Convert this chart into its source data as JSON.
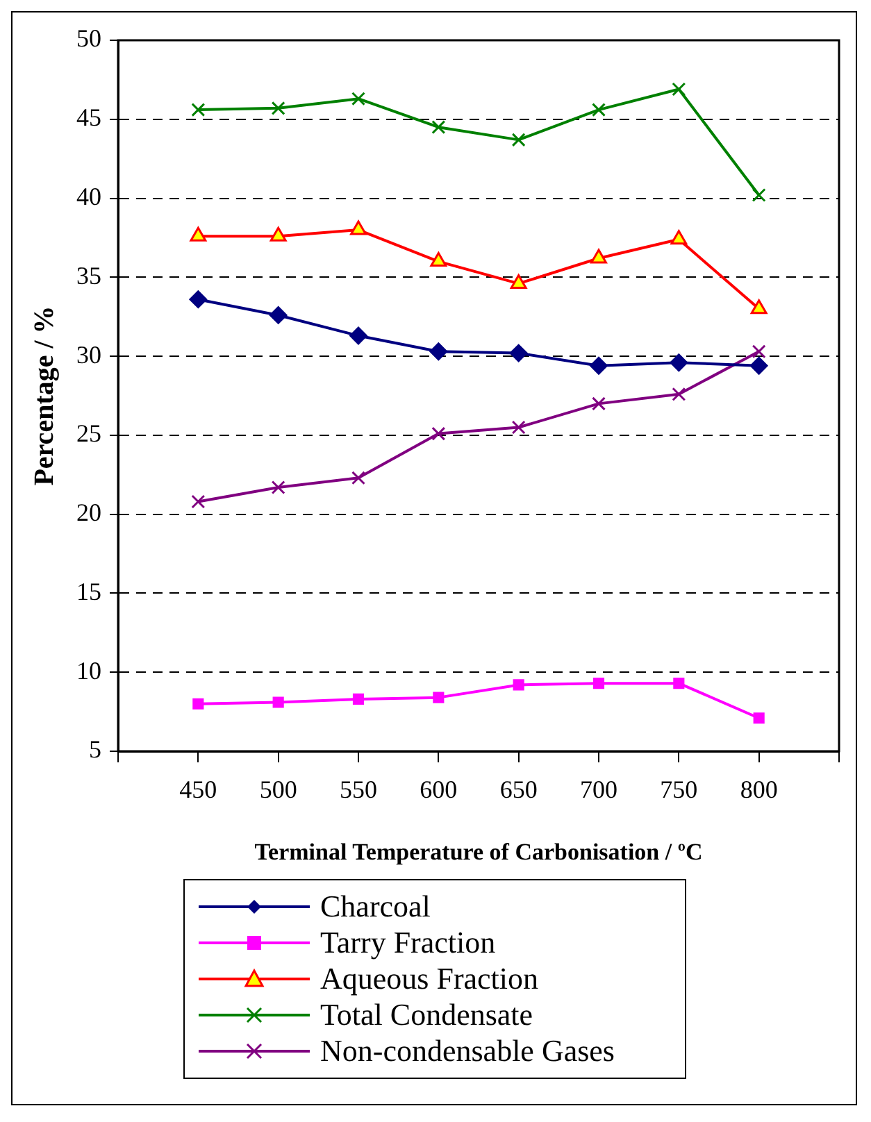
{
  "chart_data": {
    "type": "line",
    "xlabel": "Terminal Temperature of Carbonisation / ºC",
    "ylabel": "Percentage / %",
    "x": [
      450,
      500,
      550,
      600,
      650,
      700,
      750,
      800
    ],
    "xlim": [
      400,
      850
    ],
    "xticks": [
      {
        "value": 400,
        "label": null
      },
      450,
      500,
      550,
      600,
      650,
      700,
      750,
      800,
      {
        "value": 850,
        "label": null
      }
    ],
    "ylim": [
      5,
      50
    ],
    "yticks": [
      5,
      10,
      15,
      20,
      25,
      30,
      35,
      40,
      45,
      50
    ],
    "grid": "y",
    "legend": "bottom",
    "line_style": "solid",
    "series": [
      {
        "name": "Charcoal",
        "color": "#000080",
        "marker": "diamond",
        "values": [
          33.6,
          32.6,
          31.3,
          30.3,
          30.2,
          29.4,
          29.6,
          29.4
        ]
      },
      {
        "name": "Tarry Fraction",
        "color": "#ff00ff",
        "marker": "square",
        "values": [
          8.0,
          8.1,
          8.3,
          8.4,
          9.2,
          9.3,
          9.3,
          7.1
        ]
      },
      {
        "name": "Aqueous Fraction",
        "color": "#ff0000",
        "marker": "triangle",
        "values": [
          37.6,
          37.6,
          38.0,
          36.0,
          34.6,
          36.2,
          37.4,
          33.0
        ]
      },
      {
        "name": "Total Condensate",
        "color": "#008000",
        "marker": "cross",
        "values": [
          45.6,
          45.7,
          46.3,
          44.5,
          43.7,
          45.6,
          46.9,
          40.2
        ]
      },
      {
        "name": "Non-condensable Gases",
        "color": "#800080",
        "marker": "cross",
        "values": [
          20.8,
          21.7,
          22.3,
          25.1,
          25.5,
          27.0,
          27.6,
          30.3
        ]
      }
    ]
  }
}
